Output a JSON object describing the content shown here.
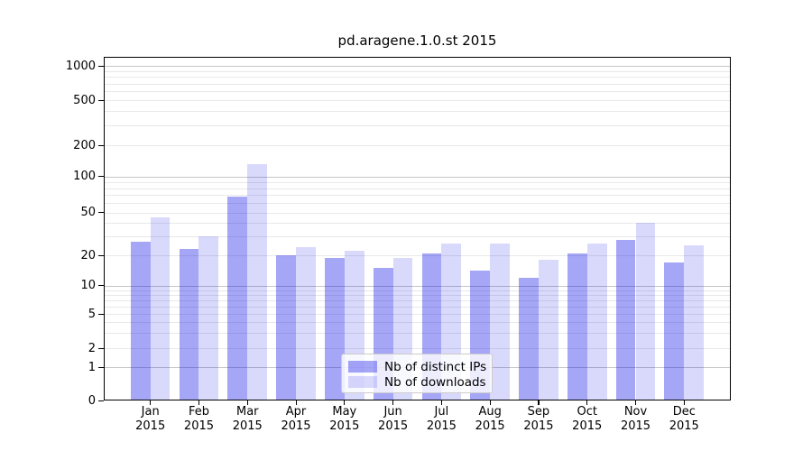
{
  "chart_data": {
    "type": "bar",
    "title": "pd.aragene.1.0.st 2015",
    "categories": [
      "Jan 2015",
      "Feb 2015",
      "Mar 2015",
      "Apr 2015",
      "May 2015",
      "Jun 2015",
      "Jul 2015",
      "Aug 2015",
      "Sep 2015",
      "Oct 2015",
      "Nov 2015",
      "Dec 2015"
    ],
    "month_labels": [
      "Jan",
      "Feb",
      "Mar",
      "Apr",
      "May",
      "Jun",
      "Jul",
      "Aug",
      "Sep",
      "Oct",
      "Nov",
      "Dec"
    ],
    "year_label": "2015",
    "series": [
      {
        "name": "Nb of distinct IPs",
        "color": "rgba(0,0,232,0.35)",
        "values": [
          27,
          23,
          68,
          20,
          19,
          15,
          21,
          14,
          12,
          21,
          28,
          17
        ]
      },
      {
        "name": "Nb of downloads",
        "color": "rgba(0,0,232,0.15)",
        "values": [
          45,
          30,
          132,
          24,
          22,
          19,
          26,
          26,
          18,
          26,
          40,
          25
        ]
      }
    ],
    "y_axis": {
      "scale": "symlog",
      "tick_labels": [
        "0",
        "1",
        "2",
        "5",
        "10",
        "20",
        "50",
        "100",
        "200",
        "500",
        "1000"
      ],
      "major_gridlines": [
        1,
        10,
        100,
        1000
      ],
      "minor_gridlines": [
        2,
        3,
        4,
        5,
        6,
        7,
        8,
        9,
        20,
        30,
        40,
        50,
        60,
        70,
        80,
        90,
        200,
        300,
        400,
        500,
        600,
        700,
        800,
        900
      ],
      "ylim": [
        0,
        1200
      ]
    },
    "legend": {
      "position": "lower center"
    },
    "grid": "both",
    "colors": {
      "grid_major": "#c6c6c6",
      "grid_minor": "#e8e8e8",
      "spine": "#000000",
      "text": "#000000",
      "background": "#ffffff"
    }
  }
}
